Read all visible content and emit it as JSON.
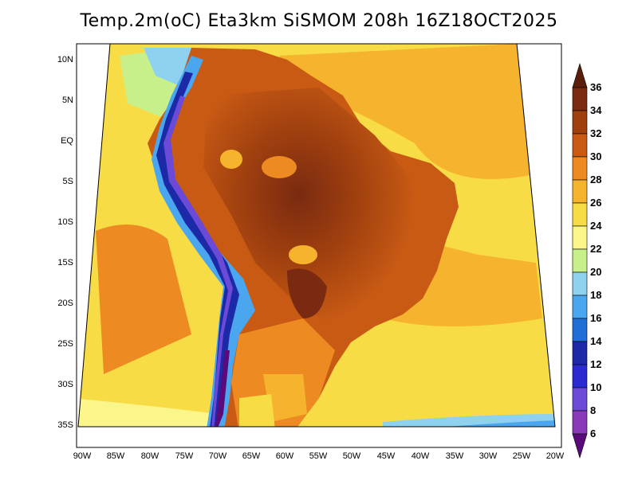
{
  "title": "Temp.2m(oC) Eta3km SiSMOM 208h 16Z18OCT2025",
  "lat_labels": [
    "10N",
    "5N",
    "EQ",
    "5S",
    "10S",
    "15S",
    "20S",
    "25S",
    "30S",
    "35S"
  ],
  "lon_labels": [
    "90W",
    "85W",
    "80W",
    "75W",
    "70W",
    "65W",
    "60W",
    "55W",
    "50W",
    "45W",
    "40W",
    "35W",
    "30W",
    "25W",
    "20W"
  ],
  "colorbar": {
    "labels": [
      "36",
      "34",
      "32",
      "30",
      "28",
      "26",
      "24",
      "22",
      "20",
      "18",
      "16",
      "14",
      "12",
      "10",
      "8",
      "6"
    ],
    "colors": [
      "#5a1e0a",
      "#7a2a10",
      "#a0400f",
      "#c85a14",
      "#ee8a22",
      "#f6b42e",
      "#f8dc46",
      "#fbf58a",
      "#c7f08a",
      "#8ed2f0",
      "#4aa6ee",
      "#1f6fd6",
      "#1c2aa8",
      "#2a2ad0",
      "#6a4ad6",
      "#8a3ab8",
      "#5a0a7a"
    ]
  },
  "colors": {
    "ocean_warm": "#ee8a22",
    "ocean_mid": "#f6b42e",
    "ocean_cool": "#f8dc46",
    "ocean_cold": "#fbf58a",
    "land_hot": "#a0400f",
    "land_warm": "#c85a14",
    "land_veryhot": "#7a2a10",
    "andes_cold": "#1c2aa8",
    "andes_cool": "#4aa6ee"
  }
}
